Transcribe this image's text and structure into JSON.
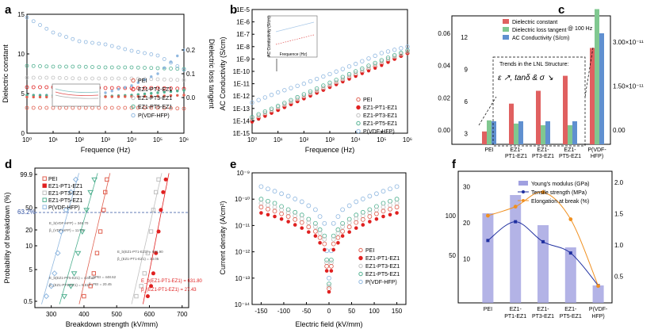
{
  "panels": [
    {
      "letter": "a"
    },
    {
      "letter": "b",
      "inset_ylabel": "AC Conductivity (S/cm)",
      "inset_xlabel": "Frequence (Hz)"
    },
    {
      "letter": "c",
      "annotation": "@ 100 Hz",
      "lnl_title": "Trends in the LNL Structure:",
      "lnl_symbols": "ε ↗, tanδ & σ ↘"
    },
    {
      "letter": "d",
      "ref_label": "63.2%"
    },
    {
      "letter": "e"
    },
    {
      "letter": "f"
    }
  ],
  "colors": {
    "PEI": "#e06050",
    "EZ1-PT1-EZ1": "#e02020",
    "EZ1-PT3-EZ1": "#c0c0c0",
    "EZ1-PT5-EZ1": "#50b090",
    "P(VDF-HFP)": "#90b8e0",
    "bar_dielectric": "#e06060",
    "bar_loss": "#80c890",
    "bar_cond": "#6090d0",
    "axis_green": "#40b070",
    "axis_blue": "#3070a0",
    "axis_red": "#d03030",
    "f_bar": "#a0a0e0",
    "f_tensile": "#2030a0",
    "f_elong": "#f09020",
    "ref_line": "#3050a0"
  },
  "chart_data": [
    {
      "type": "scatter",
      "xlabel": "Frequence (Hz)",
      "ylabel": "Dielectric constant",
      "y2label": "Dielectric loss tangent",
      "xscale": "log",
      "xlim": [
        1,
        1000000
      ],
      "ylim": [
        0,
        15
      ],
      "y2lim": [
        -0.15,
        0.35
      ],
      "xticks": [
        "10⁰",
        "10¹",
        "10²",
        "10³",
        "10⁴",
        "10⁵",
        "10⁶"
      ],
      "yticks": [
        0,
        5,
        10,
        15
      ],
      "y2ticks": [
        0.0,
        0.1,
        0.2
      ],
      "legend": [
        "PEI",
        "EZ1-PT1-EZ1",
        "EZ1-PT3-EZ1",
        "EZ1-PT5-EZ1",
        "P(VDF-HFP)"
      ],
      "series": [
        {
          "name": "PEI",
          "x": [
            1,
            10,
            100,
            1000,
            10000,
            100000,
            1000000
          ],
          "y": [
            3.2,
            3.2,
            3.2,
            3.2,
            3.2,
            3.2,
            3.1
          ]
        },
        {
          "name": "EZ1-PT1-EZ1",
          "x": [
            1,
            10,
            100,
            1000,
            10000,
            100000,
            1000000
          ],
          "y": [
            5.8,
            5.8,
            5.8,
            5.7,
            5.7,
            5.7,
            5.6
          ]
        },
        {
          "name": "EZ1-PT3-EZ1",
          "x": [
            1,
            10,
            100,
            1000,
            10000,
            100000,
            1000000
          ],
          "y": [
            7.0,
            7.0,
            6.9,
            6.9,
            6.9,
            6.8,
            6.7
          ]
        },
        {
          "name": "EZ1-PT5-EZ1",
          "x": [
            1,
            10,
            100,
            1000,
            10000,
            100000,
            1000000
          ],
          "y": [
            8.5,
            8.4,
            8.4,
            8.3,
            8.3,
            8.2,
            8.1
          ]
        },
        {
          "name": "P(VDF-HFP)",
          "x": [
            1,
            10,
            100,
            1000,
            10000,
            100000,
            1000000
          ],
          "y": [
            14.6,
            12.7,
            11.6,
            11.2,
            10.4,
            9.8,
            8.0
          ]
        }
      ],
      "loss_series": [
        {
          "name": "P(VDF-HFP)",
          "x": [
            1,
            10,
            100,
            1000,
            10000,
            100000,
            1000000
          ],
          "y": [
            0.01,
            0.01,
            0.01,
            0.02,
            0.05,
            0.1,
            0.2
          ]
        },
        {
          "name": "EZ1-PT5-EZ1",
          "x": [
            1,
            10,
            100,
            1000,
            10000,
            100000,
            1000000
          ],
          "y": [
            0.01,
            0.008,
            0.005,
            0.005,
            0.01,
            0.02,
            0.03
          ]
        },
        {
          "name": "PEI",
          "x": [
            1,
            10,
            100,
            1000,
            10000,
            100000,
            1000000
          ],
          "y": [
            0.002,
            0.002,
            0.002,
            0.003,
            0.004,
            0.006,
            0.01
          ]
        }
      ]
    },
    {
      "type": "scatter",
      "xlabel": "Frequence (Hz)",
      "ylabel": "AC Conductivity (S/cm)",
      "xscale": "log",
      "yscale": "log",
      "xlim": [
        1,
        1000000
      ],
      "ylim": [
        1e-15,
        1e-05
      ],
      "xticks": [
        "10⁰",
        "10¹",
        "10²",
        "10³",
        "10⁴",
        "10⁵",
        "10⁶"
      ],
      "yticks": [
        "1E-15",
        "1E-14",
        "1E-13",
        "1E-12",
        "1E-11",
        "1E-10",
        "1E-9",
        "1E-8",
        "1E-7",
        "1E-6",
        "1E-5"
      ],
      "legend": [
        "PEI",
        "EZ1-PT1-EZ1",
        "EZ1-PT3-EZ1",
        "EZ1-PT5-EZ1",
        "P(VDF-HFP)"
      ],
      "series": [
        {
          "name": "PEI",
          "x": [
            1,
            10,
            100,
            1000,
            10000,
            100000,
            1000000
          ],
          "y": [
            1e-14,
            8e-14,
            7e-13,
            6e-12,
            5e-11,
            4e-10,
            3e-09
          ]
        },
        {
          "name": "EZ1-PT1-EZ1",
          "x": [
            1,
            10,
            100,
            1000,
            10000,
            100000,
            1000000
          ],
          "y": [
            8e-15,
            7e-14,
            6e-13,
            5e-12,
            4e-11,
            3e-10,
            3e-09
          ]
        },
        {
          "name": "EZ1-PT3-EZ1",
          "x": [
            1,
            10,
            100,
            1000,
            10000,
            100000,
            1000000
          ],
          "y": [
            1.5e-14,
            1.2e-13,
            1e-12,
            8e-12,
            7e-11,
            6e-10,
            4e-09
          ]
        },
        {
          "name": "EZ1-PT5-EZ1",
          "x": [
            1,
            10,
            100,
            1000,
            10000,
            100000,
            1000000
          ],
          "y": [
            2e-14,
            1.6e-13,
            1.4e-12,
            1.2e-11,
            1e-10,
            8e-10,
            5e-09
          ]
        },
        {
          "name": "P(VDF-HFP)",
          "x": [
            1,
            10,
            100,
            1000,
            10000,
            100000,
            1000000
          ],
          "y": [
            3e-13,
            2e-12,
            1e-11,
            6e-11,
            4e-10,
            3e-09,
            1e-08
          ]
        }
      ]
    },
    {
      "type": "bar",
      "categories": [
        "PEI",
        "EZ1-PT1-EZ1",
        "EZ1-PT3-EZ1",
        "EZ1-PT5-EZ1",
        "P(VDF-HFP)"
      ],
      "ylim": [
        2,
        14
      ],
      "yticks": [
        3,
        6,
        9,
        12
      ],
      "y2ticks": [
        "0.00",
        "0.02",
        "0.04",
        "0.06"
      ],
      "y3ticks": [
        "0.00",
        "1.50×10⁻¹¹",
        "3.00×10⁻¹¹"
      ],
      "legend": [
        "Dielectric constant",
        "Dielectric loss tangent",
        "AC Conductivity (S/cm)"
      ],
      "series": [
        {
          "name": "Dielectric constant",
          "values": [
            3.2,
            5.8,
            7.0,
            8.4,
            11.0
          ]
        },
        {
          "name": "Dielectric loss tangent",
          "values": [
            0.006,
            0.004,
            0.003,
            0.003,
            0.075
          ]
        },
        {
          "name": "AC Conductivity (S/cm)",
          "values": [
            3e-12,
            3e-12,
            3e-12,
            3e-12,
            3.3e-11
          ]
        }
      ]
    },
    {
      "type": "scatter",
      "xlabel": "Breakdown strength (kV/mm)",
      "ylabel": "Probability of breakdown (%)",
      "xlim": [
        250,
        720
      ],
      "xticks": [
        300,
        400,
        500,
        600,
        700
      ],
      "yticks": [
        "0.5",
        "5",
        "10",
        "20",
        "50",
        "99.9"
      ],
      "reference": "63.2%",
      "legend": [
        "PEI",
        "EZ1-PT1-EZ1",
        "EZ1-PT3-EZ1",
        "EZ1-PT5-EZ1",
        "P(VDF-HFP)"
      ],
      "notes": [
        {
          "text": "E_b(VDF-HFP) = 346.70",
          "color": "#555"
        },
        {
          "text": "β_(VDF-HFP) = 11.73",
          "color": "#555"
        },
        {
          "text": "E_b(EZ1-PT1-EZ1) = 601.90",
          "color": "#555"
        },
        {
          "text": "β_(EZ1-PT1-EZ1) = 33.05",
          "color": "#555"
        },
        {
          "text": "E_b(EZ1-PT5-EZ1) = 424.42",
          "color": "#555"
        },
        {
          "text": "β_(EZ1-PT5-EZ1) = 9.81",
          "color": "#555"
        },
        {
          "text": "E_bPEI = 448.62",
          "color": "#555"
        },
        {
          "text": "β_PEI = 20.45",
          "color": "#555"
        },
        {
          "text": "E_b(EZ1-PT1-EZ1) = 631.80",
          "color": "#e02020"
        },
        {
          "text": "β_(EZ1-PT1-EZ1) = 27.43",
          "color": "#e02020"
        }
      ],
      "series": [
        {
          "name": "PEI",
          "x": [
            400,
            420,
            430,
            440,
            450,
            460,
            465,
            470
          ],
          "p": [
            4,
            12,
            22,
            38,
            55,
            72,
            86,
            96
          ]
        },
        {
          "name": "EZ1-PT1-EZ1",
          "x": [
            595,
            605,
            612,
            620,
            628,
            635,
            642,
            650
          ],
          "p": [
            4,
            12,
            22,
            38,
            55,
            72,
            86,
            96
          ]
        },
        {
          "name": "EZ1-PT3-EZ1",
          "x": [
            560,
            575,
            585,
            595,
            605,
            612,
            620,
            628
          ],
          "p": [
            4,
            12,
            22,
            38,
            55,
            72,
            86,
            96
          ]
        },
        {
          "name": "EZ1-PT5-EZ1",
          "x": [
            340,
            360,
            370,
            382,
            395,
            408,
            420,
            432
          ],
          "p": [
            4,
            12,
            22,
            38,
            55,
            72,
            86,
            96
          ]
        },
        {
          "name": "P(VDF-HFP)",
          "x": [
            285,
            300,
            310,
            320,
            330,
            345,
            360,
            375
          ],
          "p": [
            4,
            12,
            22,
            38,
            55,
            72,
            86,
            96
          ]
        }
      ]
    },
    {
      "type": "scatter",
      "xlabel": "Electric field (kV/mm)",
      "ylabel": "Current density (A/cm²)",
      "yscale": "log",
      "xlim": [
        -170,
        170
      ],
      "ylim": [
        1e-14,
        1e-09
      ],
      "xticks": [
        -150,
        -100,
        -50,
        0,
        50,
        100,
        150
      ],
      "yticks": [
        "10⁻¹⁴",
        "10⁻¹³",
        "10⁻¹²",
        "10⁻¹¹",
        "10⁻¹⁰",
        "10⁻⁹"
      ],
      "legend": [
        "PEI",
        "EZ1-PT1-EZ1",
        "EZ1-PT3-EZ1",
        "EZ1-PT5-EZ1",
        "P(VDF-HFP)"
      ],
      "series": [
        {
          "name": "P(VDF-HFP)",
          "x": [
            -150,
            -120,
            -90,
            -60,
            -30,
            -10,
            0,
            10,
            30,
            60,
            90,
            120,
            150
          ],
          "y": [
            3e-10,
            2e-10,
            1.3e-10,
            8e-11,
            4e-11,
            1.2e-11,
            1e-13,
            1.2e-11,
            4e-11,
            8e-11,
            1.3e-10,
            2e-10,
            3e-10
          ]
        },
        {
          "name": "EZ1-PT5-EZ1",
          "x": [
            -150,
            -120,
            -90,
            -60,
            -30,
            -10,
            0,
            10,
            30,
            60,
            90,
            120,
            150
          ],
          "y": [
            1e-10,
            7e-11,
            4e-11,
            2.5e-11,
            1.2e-11,
            4e-12,
            6e-14,
            4e-12,
            1.2e-11,
            2.5e-11,
            4e-11,
            7e-11,
            1e-10
          ]
        },
        {
          "name": "EZ1-PT3-EZ1",
          "x": [
            -150,
            -120,
            -90,
            -60,
            -30,
            -10,
            0,
            10,
            30,
            60,
            90,
            120,
            150
          ],
          "y": [
            7e-11,
            5e-11,
            3e-11,
            1.8e-11,
            9e-12,
            3e-12,
            5e-14,
            3e-12,
            9e-12,
            1.8e-11,
            3e-11,
            5e-11,
            7e-11
          ]
        },
        {
          "name": "PEI",
          "x": [
            -150,
            -120,
            -90,
            -60,
            -30,
            -10,
            0,
            10,
            30,
            60,
            90,
            120,
            150
          ],
          "y": [
            5e-11,
            3.5e-11,
            2.2e-11,
            1.3e-11,
            6e-12,
            2e-12,
            4e-14,
            2e-12,
            6e-12,
            1.3e-11,
            2.2e-11,
            3.5e-11,
            5e-11
          ]
        },
        {
          "name": "EZ1-PT1-EZ1",
          "x": [
            -150,
            -120,
            -90,
            -60,
            -30,
            -10,
            0,
            10,
            30,
            60,
            90,
            120,
            150
          ],
          "y": [
            3e-11,
            2.2e-11,
            1.4e-11,
            8e-12,
            4e-12,
            1.2e-12,
            3e-14,
            1.2e-12,
            4e-12,
            8e-12,
            1.4e-11,
            2.2e-11,
            3e-11
          ]
        }
      ]
    },
    {
      "type": "bar",
      "categories": [
        "PEI",
        "EZ1-PT1-EZ1",
        "EZ1-PT3-EZ1",
        "EZ1-PT5-EZ1",
        "P(VDF-HFP)"
      ],
      "ylim": [
        5,
        150
      ],
      "yticks": [
        50,
        100
      ],
      "y2ticks": [
        10,
        20,
        30
      ],
      "y3ticks": [
        "0.5",
        "1.0",
        "1.5",
        "2.0"
      ],
      "legend": [
        "Young's modulus (GPa)",
        "Tensile strength (MPa)",
        "Elongation at break (%)"
      ],
      "series": [
        {
          "name": "Young's modulus (GPa)",
          "values": [
            103,
            126,
            88,
            60,
            12
          ]
        },
        {
          "name": "Tensile strength (MPa)",
          "values": [
            1.07,
            1.37,
            1.05,
            0.87,
            0.35
          ]
        },
        {
          "name": "Elongation at break (%)",
          "values": [
            22,
            24.5,
            28.5,
            21,
            2.5
          ]
        }
      ]
    }
  ]
}
